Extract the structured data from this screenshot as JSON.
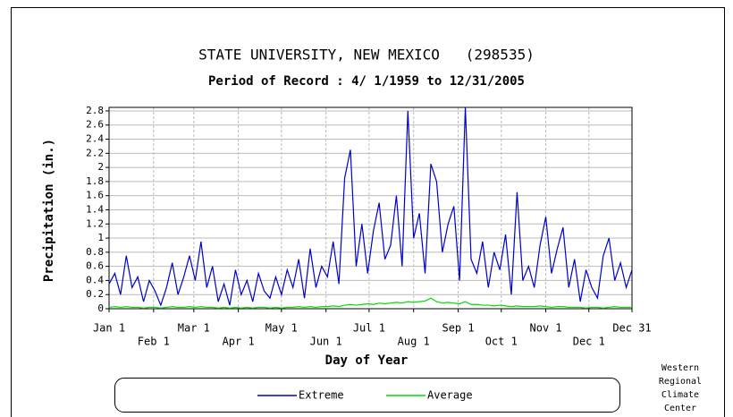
{
  "chart_data": {
    "type": "line",
    "title": "STATE UNIVERSITY, NEW MEXICO   (298535)",
    "subtitle": "Period of Record : 4/ 1/1959 to 12/31/2005",
    "x_label": "Day of Year",
    "y_label": "Precipitation (in.)",
    "credit": [
      "Western",
      "Regional",
      "Climate",
      "Center"
    ],
    "xlim": [
      1,
      365
    ],
    "xticks": [
      {
        "value": 1,
        "label": "Jan 1"
      },
      {
        "value": 32,
        "label": "Feb 1"
      },
      {
        "value": 60,
        "label": "Mar 1"
      },
      {
        "value": 91,
        "label": "Apr 1"
      },
      {
        "value": 121,
        "label": "May 1"
      },
      {
        "value": 152,
        "label": "Jun 1"
      },
      {
        "value": 182,
        "label": "Jul 1"
      },
      {
        "value": 213,
        "label": "Aug 1"
      },
      {
        "value": 244,
        "label": "Sep 1"
      },
      {
        "value": 274,
        "label": "Oct 1"
      },
      {
        "value": 305,
        "label": "Nov 1"
      },
      {
        "value": 335,
        "label": "Dec 1"
      },
      {
        "value": 365,
        "label": "Dec 31"
      }
    ],
    "ylim": [
      0,
      2.85
    ],
    "yticks": [
      0,
      0.2,
      0.4,
      0.6,
      0.8,
      1,
      1.2,
      1.4,
      1.6,
      1.8,
      2,
      2.2,
      2.4,
      2.6,
      2.8
    ],
    "grid": true,
    "x": [
      1,
      5,
      9,
      13,
      17,
      21,
      25,
      29,
      33,
      37,
      41,
      45,
      49,
      53,
      57,
      61,
      65,
      69,
      73,
      77,
      81,
      85,
      89,
      93,
      97,
      101,
      105,
      109,
      113,
      117,
      121,
      125,
      129,
      133,
      137,
      141,
      145,
      149,
      153,
      157,
      161,
      165,
      169,
      173,
      177,
      181,
      185,
      189,
      193,
      197,
      201,
      205,
      209,
      213,
      217,
      221,
      225,
      229,
      233,
      237,
      241,
      245,
      249,
      253,
      257,
      261,
      265,
      269,
      273,
      277,
      281,
      285,
      289,
      293,
      297,
      301,
      305,
      309,
      313,
      317,
      321,
      325,
      329,
      333,
      337,
      341,
      345,
      349,
      353,
      357,
      361,
      365
    ],
    "series": [
      {
        "name": "Extreme",
        "color": "#0000cc",
        "values": [
          0.35,
          0.5,
          0.2,
          0.75,
          0.3,
          0.45,
          0.1,
          0.4,
          0.25,
          0.05,
          0.3,
          0.65,
          0.2,
          0.45,
          0.75,
          0.4,
          0.95,
          0.3,
          0.6,
          0.1,
          0.35,
          0.05,
          0.55,
          0.2,
          0.4,
          0.1,
          0.5,
          0.25,
          0.15,
          0.45,
          0.2,
          0.55,
          0.3,
          0.7,
          0.15,
          0.85,
          0.3,
          0.6,
          0.45,
          0.95,
          0.35,
          1.85,
          2.25,
          0.6,
          1.2,
          0.5,
          1.1,
          1.5,
          0.7,
          0.9,
          1.6,
          0.6,
          2.8,
          1.0,
          1.35,
          0.5,
          2.05,
          1.8,
          0.8,
          1.2,
          1.45,
          0.4,
          2.85,
          0.7,
          0.5,
          0.95,
          0.3,
          0.8,
          0.55,
          1.05,
          0.2,
          1.65,
          0.4,
          0.6,
          0.3,
          0.9,
          1.3,
          0.5,
          0.85,
          1.15,
          0.3,
          0.7,
          0.1,
          0.55,
          0.3,
          0.15,
          0.75,
          1.0,
          0.4,
          0.65,
          0.3,
          0.55
        ]
      },
      {
        "name": "Average",
        "color": "#00dd00",
        "values": [
          0.02,
          0.03,
          0.02,
          0.03,
          0.02,
          0.02,
          0.01,
          0.02,
          0.02,
          0.01,
          0.02,
          0.03,
          0.02,
          0.02,
          0.03,
          0.02,
          0.03,
          0.02,
          0.02,
          0.01,
          0.02,
          0.01,
          0.02,
          0.01,
          0.02,
          0.01,
          0.02,
          0.02,
          0.01,
          0.02,
          0.01,
          0.02,
          0.02,
          0.03,
          0.02,
          0.03,
          0.02,
          0.03,
          0.03,
          0.04,
          0.03,
          0.05,
          0.06,
          0.05,
          0.06,
          0.07,
          0.06,
          0.08,
          0.07,
          0.08,
          0.09,
          0.08,
          0.1,
          0.09,
          0.1,
          0.11,
          0.15,
          0.1,
          0.08,
          0.09,
          0.08,
          0.07,
          0.1,
          0.06,
          0.06,
          0.05,
          0.05,
          0.04,
          0.05,
          0.04,
          0.03,
          0.04,
          0.03,
          0.03,
          0.03,
          0.04,
          0.03,
          0.02,
          0.03,
          0.03,
          0.02,
          0.02,
          0.02,
          0.01,
          0.02,
          0.02,
          0.01,
          0.02,
          0.03,
          0.02,
          0.02,
          0.02
        ]
      }
    ]
  }
}
